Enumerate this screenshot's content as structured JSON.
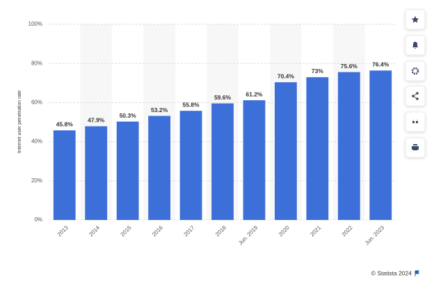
{
  "chart_data": {
    "type": "bar",
    "y_axis_label": "Internet user penetration rate",
    "credit": "© Statista 2024",
    "categories": [
      "2013",
      "2014",
      "2015",
      "2016",
      "2017",
      "2018",
      "Jun. 2019",
      "2020",
      "2021",
      "2022",
      "Jun. 2023"
    ],
    "values": [
      45.8,
      47.9,
      50.3,
      53.2,
      55.8,
      59.6,
      61.2,
      70.4,
      73,
      75.6,
      76.4
    ],
    "value_labels": [
      "45.8%",
      "47.9%",
      "50.3%",
      "53.2%",
      "55.8%",
      "59.6%",
      "61.2%",
      "70.4%",
      "73%",
      "75.6%",
      "76.4%"
    ],
    "color": "#3d6fd9",
    "ylim": [
      0,
      100
    ],
    "yticks": [
      {
        "value": 0,
        "label": "0%"
      },
      {
        "value": 20,
        "label": "20%"
      },
      {
        "value": 40,
        "label": "40%"
      },
      {
        "value": 60,
        "label": "60%"
      },
      {
        "value": 80,
        "label": "80%"
      },
      {
        "value": 100,
        "label": "100%"
      }
    ],
    "grid": true
  }
}
